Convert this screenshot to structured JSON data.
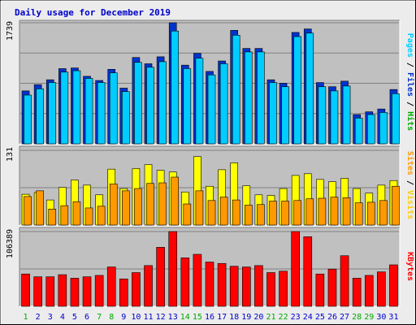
{
  "chart_data": [
    {
      "type": "bar",
      "title": "Daily usage for December 2019",
      "categories": [
        "1",
        "2",
        "3",
        "4",
        "5",
        "6",
        "7",
        "8",
        "9",
        "10",
        "11",
        "12",
        "13",
        "14",
        "15",
        "16",
        "17",
        "18",
        "19",
        "20",
        "21",
        "22",
        "23",
        "24",
        "25",
        "26",
        "27",
        "28",
        "29",
        "30",
        "31"
      ],
      "weekend_days": [
        "1",
        "7",
        "8",
        "14",
        "15",
        "21",
        "22",
        "28",
        "29"
      ],
      "ymax_label": "1739",
      "ylim": [
        0,
        1739
      ],
      "legend": [
        "Pages",
        "Files",
        "Hits"
      ],
      "legend_separator": " / ",
      "series": [
        {
          "name": "Hits",
          "color": "#0033cc",
          "values": [
            760,
            850,
            920,
            1080,
            1090,
            970,
            910,
            1070,
            800,
            1240,
            1150,
            1250,
            1739,
            1130,
            1300,
            1040,
            1190,
            1630,
            1370,
            1370,
            920,
            870,
            1600,
            1650,
            880,
            820,
            900,
            420,
            460,
            500,
            780
          ]
        },
        {
          "name": "Files",
          "color": "#00ccff",
          "values": [
            700,
            790,
            880,
            1030,
            1050,
            940,
            880,
            1020,
            750,
            1170,
            1100,
            1180,
            1620,
            1080,
            1230,
            990,
            1150,
            1560,
            1320,
            1320,
            880,
            820,
            1540,
            1590,
            820,
            760,
            830,
            370,
            420,
            450,
            720
          ]
        }
      ]
    },
    {
      "type": "bar",
      "categories": [
        "1",
        "2",
        "3",
        "4",
        "5",
        "6",
        "7",
        "8",
        "9",
        "10",
        "11",
        "12",
        "13",
        "14",
        "15",
        "16",
        "17",
        "18",
        "19",
        "20",
        "21",
        "22",
        "23",
        "24",
        "25",
        "26",
        "27",
        "28",
        "29",
        "30",
        "31"
      ],
      "ymax_label": "131",
      "ylim": [
        0,
        131
      ],
      "legend": [
        "Sites",
        "Visits"
      ],
      "legend_separator": " / ",
      "series": [
        {
          "name": "Visits",
          "color": "#ffff00",
          "values": [
            54,
            57,
            44,
            66,
            79,
            70,
            53,
            98,
            64,
            99,
            106,
            96,
            93,
            58,
            120,
            68,
            97,
            109,
            69,
            53,
            52,
            64,
            87,
            90,
            80,
            76,
            82,
            64,
            56,
            70,
            78
          ]
        },
        {
          "name": "Sites",
          "color": "#ff9900",
          "values": [
            50,
            60,
            28,
            34,
            41,
            30,
            33,
            72,
            60,
            64,
            73,
            74,
            84,
            37,
            60,
            43,
            49,
            44,
            35,
            36,
            42,
            42,
            43,
            46,
            47,
            49,
            48,
            39,
            40,
            43,
            68
          ]
        }
      ]
    },
    {
      "type": "bar",
      "categories": [
        "1",
        "2",
        "3",
        "4",
        "5",
        "6",
        "7",
        "8",
        "9",
        "10",
        "11",
        "12",
        "13",
        "14",
        "15",
        "16",
        "17",
        "18",
        "19",
        "20",
        "21",
        "22",
        "23",
        "24",
        "25",
        "26",
        "27",
        "28",
        "29",
        "30",
        "31"
      ],
      "ymax_label": "106389",
      "ylim": [
        0,
        106389
      ],
      "legend": [
        "KBytes"
      ],
      "legend_separator": "",
      "series": [
        {
          "name": "KBytes",
          "color": "#ff0000",
          "values": [
            46000,
            42000,
            42000,
            45000,
            40000,
            42000,
            44000,
            56000,
            39000,
            48000,
            58000,
            84000,
            106389,
            69000,
            74000,
            63000,
            61000,
            57000,
            56000,
            58000,
            48000,
            50000,
            106389,
            99000,
            46000,
            53000,
            72000,
            40000,
            44000,
            49000,
            59000
          ]
        }
      ]
    }
  ],
  "colors": {
    "background": "#ececec",
    "panel": "#c0c0c0",
    "grid": "#808080",
    "title": "#0000cc",
    "weekday": "#0000cc",
    "weekend": "#00aa00",
    "pages_label": "#00ccff",
    "files_label": "#0033cc",
    "hits_label": "#00aa00",
    "sites_label": "#ff9900",
    "visits_label": "#ffcc00",
    "kbytes_label": "#ff0000",
    "separator": "#000000"
  }
}
